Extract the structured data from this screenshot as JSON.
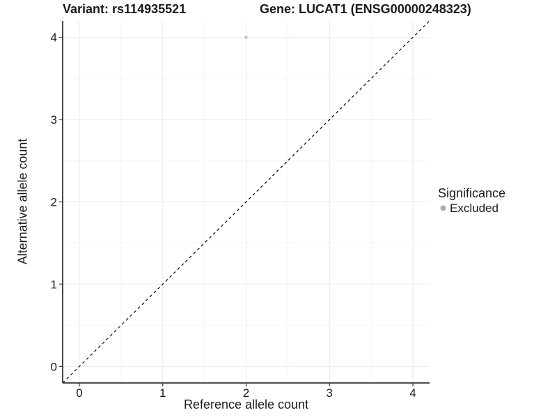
{
  "chart_data": {
    "type": "scatter",
    "title_left": "Variant: rs114935521",
    "title_right": "Gene: LUCAT1 (ENSG00000248323)",
    "xlabel": "Reference allele count",
    "ylabel": "Alternative allele count",
    "xlim": [
      -0.2,
      4.2
    ],
    "ylim": [
      -0.2,
      4.2
    ],
    "x_ticks": [
      0,
      1,
      2,
      3,
      4
    ],
    "y_ticks": [
      0,
      1,
      2,
      3,
      4
    ],
    "grid": "major and minor gridlines, white background",
    "points": [
      {
        "x": 2,
        "y": 4,
        "series": "Excluded",
        "color": "#c4c4c4"
      }
    ],
    "reference_line": {
      "type": "abline",
      "slope": 1,
      "intercept": 0,
      "style": "dashed",
      "color": "#000000"
    },
    "legend": {
      "title": "Significance",
      "position": "right",
      "items": [
        {
          "label": "Excluded",
          "marker": "circle",
          "color": "#aaaaaa"
        }
      ]
    },
    "colors": {
      "grid_major": "#e9e9e9",
      "grid_minor": "#f4f4f4",
      "axis_line": "#333333",
      "tick_mark": "#333333",
      "tick_label": "#1a1a1a"
    }
  }
}
